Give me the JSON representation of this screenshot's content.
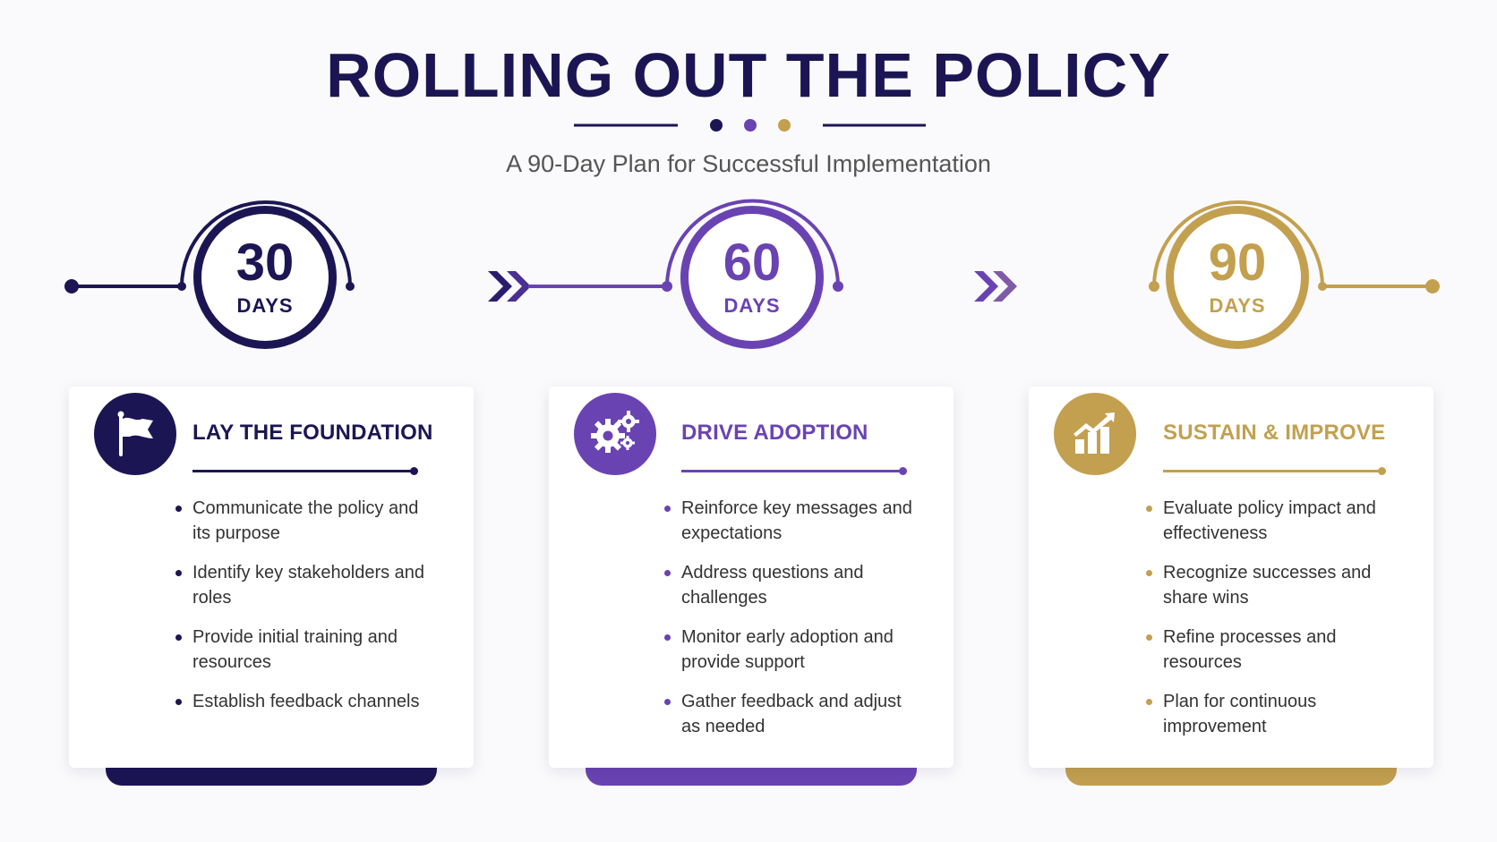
{
  "header": {
    "title": "ROLLING OUT THE POLICY",
    "subtitle": "A 90-Day Plan for Successful Implementation"
  },
  "colors": {
    "navy": "#1b1653",
    "purple": "#6a43b3",
    "gold": "#c3a04f"
  },
  "phases": [
    {
      "number": "30",
      "unit": "DAYS",
      "icon": "flag-icon",
      "title": "LAY THE FOUNDATION",
      "items": [
        "Communicate the policy and its purpose",
        "Identify key stakeholders and roles",
        "Provide initial training and resources",
        "Establish feedback channels"
      ]
    },
    {
      "number": "60",
      "unit": "DAYS",
      "icon": "gears-icon",
      "title": "DRIVE ADOPTION",
      "items": [
        "Reinforce key messages and expectations",
        "Address questions and challenges",
        "Monitor early adoption and provide support",
        "Gather feedback and adjust as needed"
      ]
    },
    {
      "number": "90",
      "unit": "DAYS",
      "icon": "growth-chart-icon",
      "title": "SUSTAIN & IMPROVE",
      "items": [
        "Evaluate policy impact and effectiveness",
        "Recognize successes and share wins",
        "Refine processes and resources",
        "Plan for continuous improvement"
      ]
    }
  ]
}
